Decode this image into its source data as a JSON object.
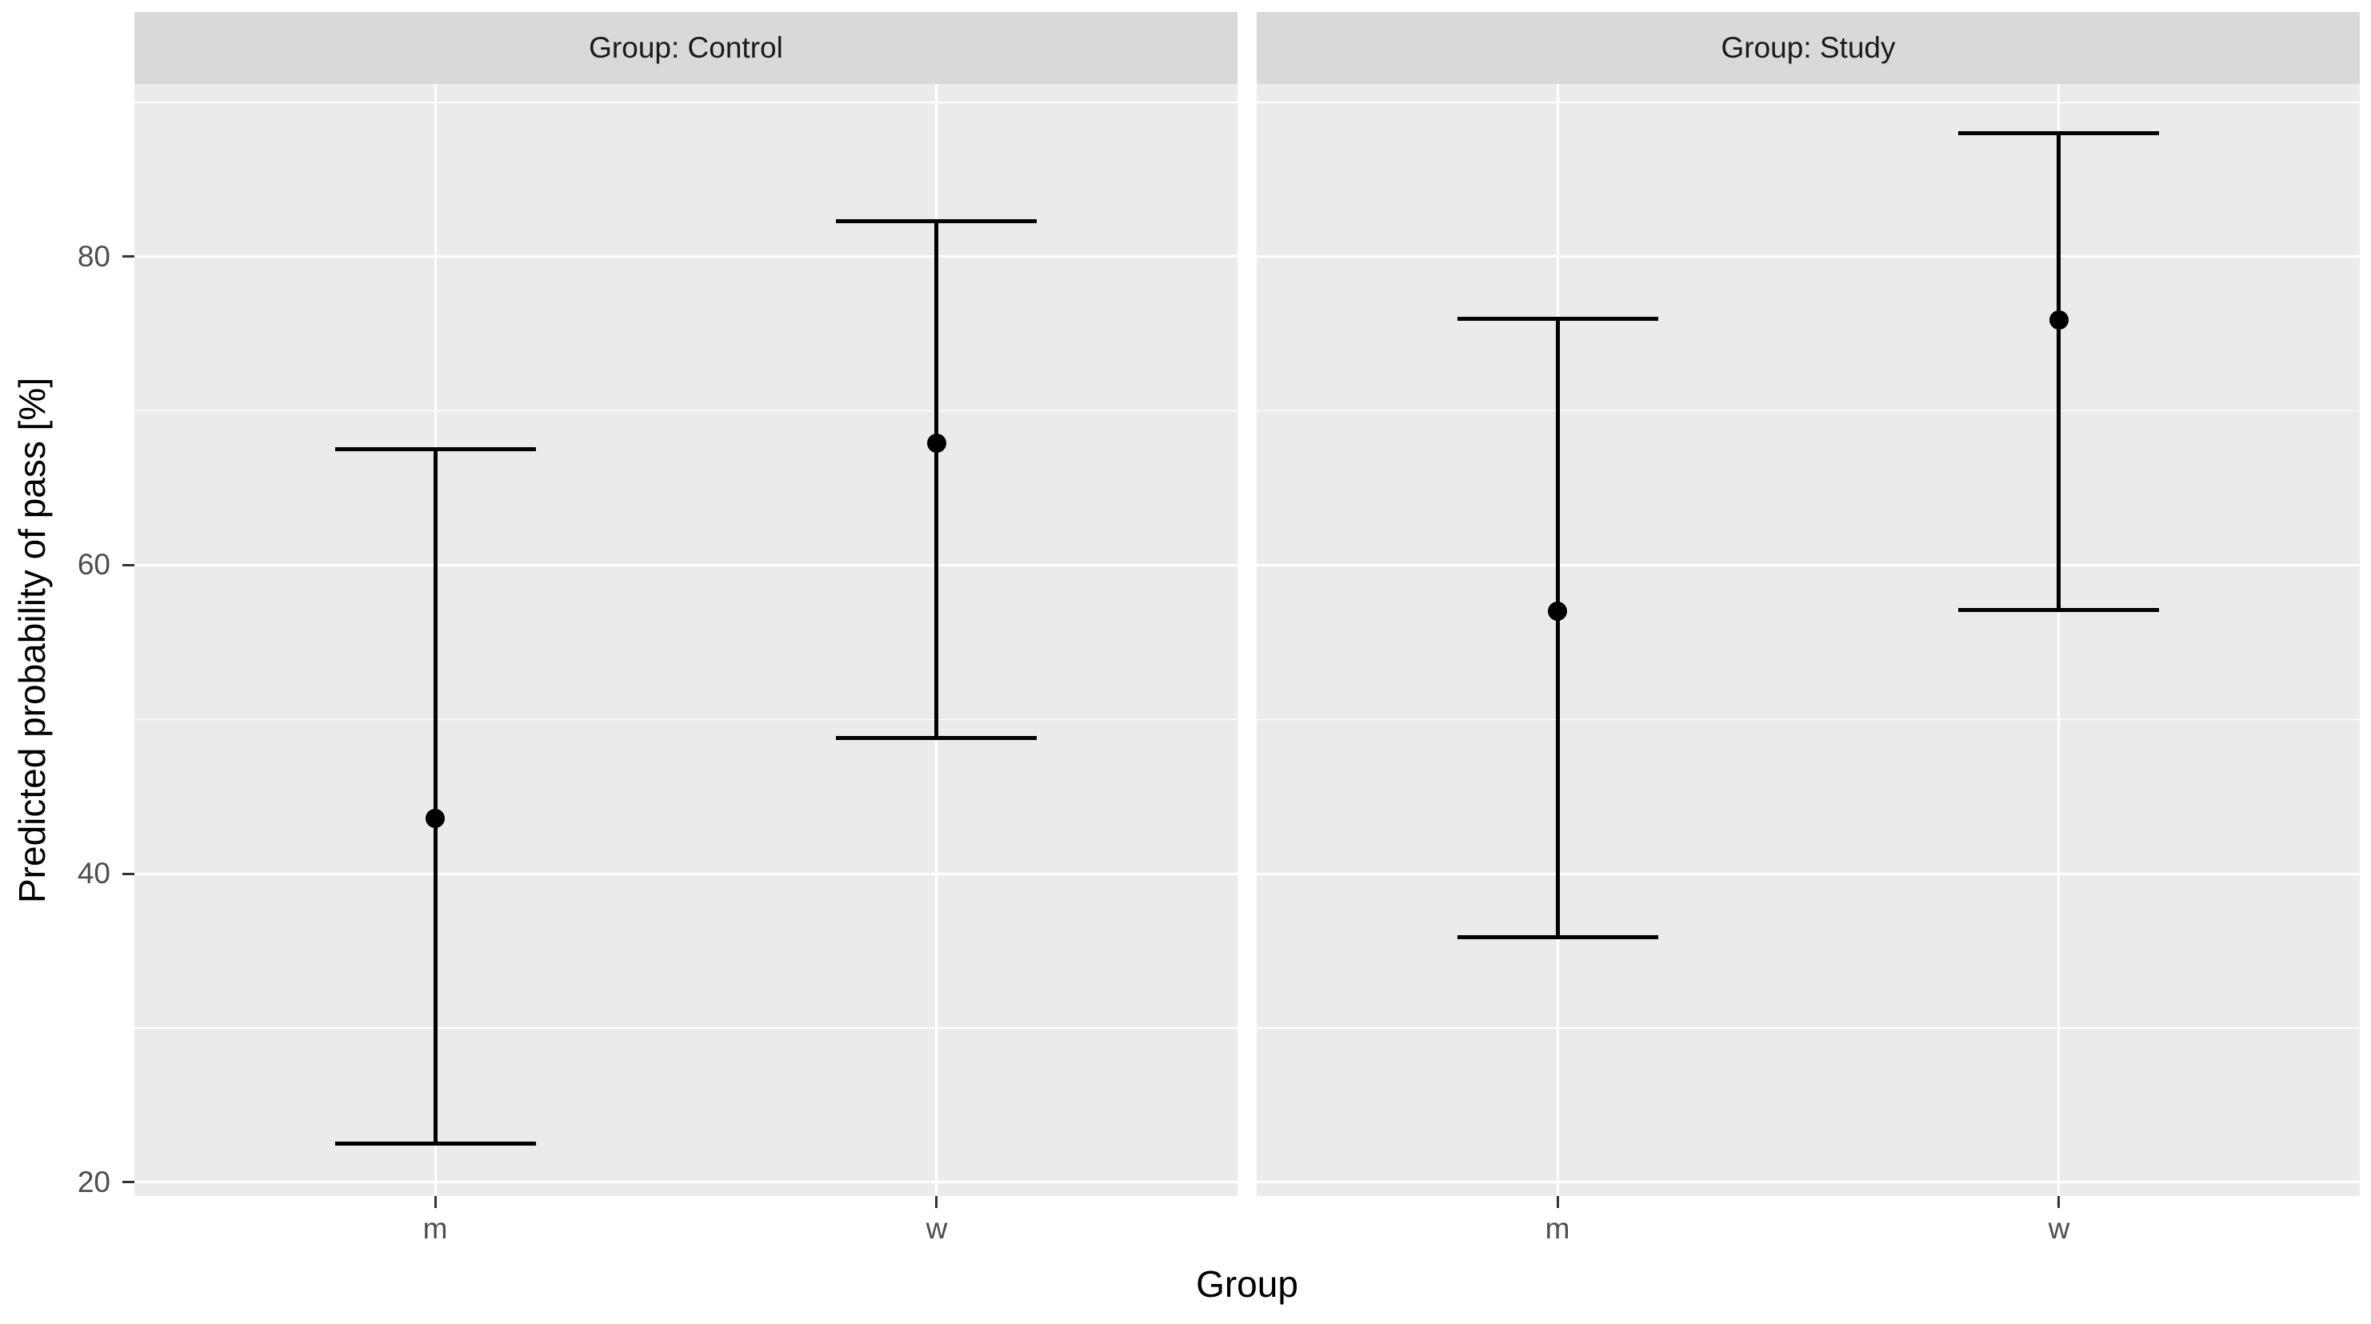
{
  "figure": {
    "background_color": "#FFFFFF",
    "panel_background_color": "#EBEBEB",
    "strip_background_color": "#D9D9D9",
    "gridline_color": "#FFFFFF",
    "data_color": "#000000",
    "axis_text_color": "#4D4D4D",
    "axis_title_color": "#000000",
    "strip_text_color": "#1A1A1A"
  },
  "chart_data": {
    "type": "scatter",
    "subtype": "point-estimates-with-error-bars",
    "faceted": true,
    "facets": [
      {
        "label": "Group: Control",
        "points": [
          {
            "x": "m",
            "y": 43.6,
            "ymin": 22.5,
            "ymax": 67.5
          },
          {
            "x": "w",
            "y": 67.9,
            "ymin": 48.8,
            "ymax": 82.3
          }
        ]
      },
      {
        "label": "Group: Study",
        "points": [
          {
            "x": "m",
            "y": 57.0,
            "ymin": 35.9,
            "ymax": 76.0
          },
          {
            "x": "w",
            "y": 75.9,
            "ymin": 57.1,
            "ymax": 88.0
          }
        ]
      }
    ],
    "categories": [
      "m",
      "w"
    ],
    "xlabel": "Group",
    "ylabel": "Predicted probability of pass [%]",
    "y_major_ticks": [
      20,
      40,
      60,
      80
    ],
    "y_minor_gridlines": [
      30,
      50,
      70,
      90
    ],
    "ylim": [
      19.1,
      91.2
    ],
    "grid": "white major and minor horizontal lines, white vertical lines at categories",
    "legend": "none"
  }
}
